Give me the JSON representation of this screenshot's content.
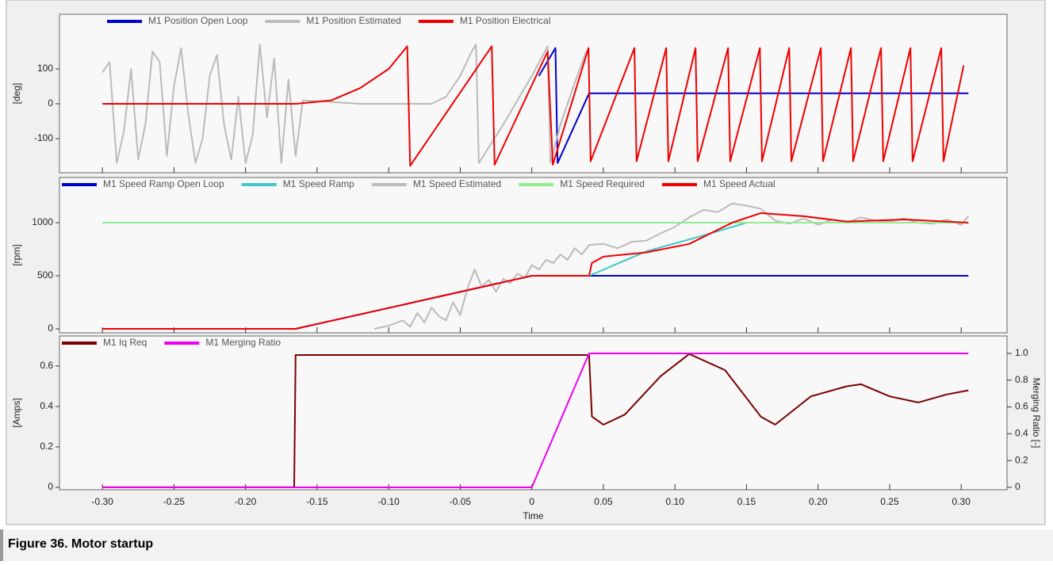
{
  "caption": "Figure 36. Motor startup",
  "chart_data": [
    {
      "type": "line",
      "ylabel": "[deg]",
      "xlim": [
        -0.33,
        0.332
      ],
      "ylim": [
        -198,
        257
      ],
      "yticks": [
        -100,
        0,
        100
      ],
      "series": [
        {
          "name": "M1 Position Open Loop",
          "color": "#0000cc",
          "x": [
            0.005,
            0.0165,
            0.018,
            0.04,
            0.305
          ],
          "values": [
            80,
            160,
            -170,
            30,
            30
          ]
        },
        {
          "name": "M1 Position Estimated",
          "color": "#bbbbbb",
          "x": [
            -0.3,
            -0.295,
            -0.29,
            -0.285,
            -0.28,
            -0.275,
            -0.27,
            -0.265,
            -0.26,
            -0.255,
            -0.25,
            -0.245,
            -0.24,
            -0.235,
            -0.23,
            -0.225,
            -0.22,
            -0.215,
            -0.21,
            -0.205,
            -0.2,
            -0.195,
            -0.19,
            -0.185,
            -0.18,
            -0.175,
            -0.17,
            -0.165,
            -0.16,
            -0.14,
            -0.12,
            -0.09,
            -0.07,
            -0.06,
            -0.05,
            -0.042,
            -0.039,
            -0.037,
            -0.02,
            0,
            0.011,
            0.013,
            0.02,
            0.03,
            0.038
          ],
          "values": [
            90,
            120,
            -170,
            -80,
            100,
            -160,
            -60,
            150,
            120,
            -150,
            50,
            160,
            -30,
            -170,
            -100,
            80,
            140,
            -60,
            -160,
            20,
            -170,
            -90,
            170,
            -40,
            130,
            -170,
            70,
            -150,
            10,
            5,
            0,
            0,
            0,
            20,
            80,
            150,
            170,
            -170,
            -60,
            80,
            165,
            -170,
            -60,
            60,
            150
          ]
        },
        {
          "name": "M1 Position Electrical",
          "color": "#ee0000",
          "x": [
            -0.3,
            -0.165,
            -0.14,
            -0.12,
            -0.1,
            -0.087,
            -0.085,
            -0.028,
            -0.026,
            0.011,
            0.0147,
            0.0396,
            0.0411,
            0.0717,
            0.0732,
            0.0939,
            0.0954,
            0.1144,
            0.1159,
            0.1371,
            0.1386,
            0.1593,
            0.1608,
            0.1798,
            0.1813,
            0.2019,
            0.2034,
            0.223,
            0.2245,
            0.244,
            0.2455,
            0.2645,
            0.266,
            0.2861,
            0.2876,
            0.3017
          ],
          "values": [
            0,
            0,
            10,
            45,
            100,
            165,
            -178,
            165,
            -175,
            150,
            -175,
            160,
            -165,
            160,
            -165,
            160,
            -165,
            160,
            -165,
            160,
            -165,
            160,
            -165,
            160,
            -165,
            160,
            -165,
            160,
            -165,
            160,
            -165,
            160,
            -165,
            160,
            -165,
            110
          ]
        }
      ]
    },
    {
      "type": "line",
      "ylabel": "[rpm]",
      "xlim": [
        -0.33,
        0.332
      ],
      "ylim": [
        -37,
        1425
      ],
      "yticks": [
        0,
        500,
        1000
      ],
      "series": [
        {
          "name": "M1 Speed Ramp Open Loop",
          "color": "#0000cc",
          "x": [
            -0.3,
            -0.165,
            0,
            0.305
          ],
          "values": [
            0,
            0,
            500,
            500
          ]
        },
        {
          "name": "M1 Speed Ramp",
          "color": "#40c8c8",
          "x": [
            0.04,
            0.08,
            0.12,
            0.15,
            0.305
          ],
          "values": [
            500,
            730,
            880,
            1000,
            1000
          ]
        },
        {
          "name": "M1 Speed Estimated",
          "color": "#bbbbbb",
          "x": [
            -0.11,
            -0.1,
            -0.09,
            -0.085,
            -0.08,
            -0.075,
            -0.07,
            -0.065,
            -0.06,
            -0.055,
            -0.05,
            -0.045,
            -0.04,
            -0.035,
            -0.03,
            -0.025,
            -0.02,
            -0.015,
            -0.01,
            -0.005,
            0,
            0.005,
            0.01,
            0.015,
            0.02,
            0.025,
            0.03,
            0.035,
            0.04,
            0.05,
            0.06,
            0.07,
            0.08,
            0.09,
            0.1,
            0.11,
            0.12,
            0.13,
            0.14,
            0.15,
            0.16,
            0.17,
            0.18,
            0.19,
            0.2,
            0.21,
            0.22,
            0.23,
            0.24,
            0.25,
            0.26,
            0.27,
            0.28,
            0.29,
            0.3,
            0.305
          ],
          "values": [
            0,
            30,
            80,
            20,
            150,
            60,
            200,
            120,
            80,
            250,
            130,
            380,
            560,
            400,
            460,
            350,
            470,
            430,
            520,
            480,
            600,
            560,
            650,
            620,
            700,
            650,
            760,
            700,
            790,
            800,
            760,
            820,
            830,
            900,
            960,
            1050,
            1120,
            1100,
            1180,
            1160,
            1130,
            1020,
            990,
            1040,
            980,
            1030,
            1000,
            1050,
            1020,
            1010,
            1040,
            1000,
            990,
            1030,
            980,
            1060
          ]
        },
        {
          "name": "M1 Speed Required",
          "color": "#90ee90",
          "x": [
            -0.3,
            0.305
          ],
          "values": [
            1000,
            1000
          ]
        },
        {
          "name": "M1 Speed Actual",
          "color": "#ee0000",
          "x": [
            -0.3,
            -0.165,
            0,
            0.04,
            0.042,
            0.05,
            0.08,
            0.11,
            0.14,
            0.16,
            0.19,
            0.22,
            0.26,
            0.305
          ],
          "values": [
            0,
            0,
            500,
            500,
            620,
            680,
            720,
            800,
            1000,
            1090,
            1060,
            1010,
            1030,
            1000
          ]
        }
      ]
    },
    {
      "type": "line",
      "ylabel": "[Amps]",
      "y2label": "Merging Ratio [-]",
      "xlabel": "Time",
      "xlim": [
        -0.33,
        0.332
      ],
      "xticks": [
        {
          "value": -0.3,
          "label": "-0.30"
        },
        -0.25,
        {
          "value": -0.2,
          "label": "-0.20"
        },
        -0.15,
        {
          "value": -0.1,
          "label": "-0.10"
        },
        -0.05,
        0,
        0.05,
        {
          "value": 0.1,
          "label": "0.10"
        },
        0.15,
        {
          "value": 0.2,
          "label": "0.20"
        },
        0.25,
        {
          "value": 0.3,
          "label": "0.30"
        }
      ],
      "ylim": [
        -0.012,
        0.749
      ],
      "yticks": [
        0,
        0.2,
        0.4,
        0.6
      ],
      "y2lim": [
        -0.018,
        1.13
      ],
      "y2ticks": [
        0,
        0.2,
        0.4,
        0.6,
        0.8,
        {
          "value": 1,
          "label": "1.0"
        }
      ],
      "series": [
        {
          "name": "M1 Iq Req",
          "color": "#7a0000",
          "x": [
            -0.3,
            -0.166,
            -0.165,
            0.04,
            0.042,
            0.05,
            0.065,
            0.09,
            0.11,
            0.135,
            0.16,
            0.17,
            0.195,
            0.22,
            0.23,
            0.25,
            0.27,
            0.29,
            0.305
          ],
          "values": [
            0,
            0,
            0.655,
            0.655,
            0.35,
            0.31,
            0.36,
            0.55,
            0.66,
            0.58,
            0.35,
            0.31,
            0.45,
            0.5,
            0.51,
            0.45,
            0.42,
            0.46,
            0.48
          ]
        },
        {
          "name": "M1 Merging Ratio",
          "color": "#ee00ee",
          "axis": "y2",
          "x": [
            -0.3,
            0,
            0.04,
            0.305
          ],
          "values": [
            0,
            0,
            1,
            1
          ]
        }
      ]
    }
  ]
}
